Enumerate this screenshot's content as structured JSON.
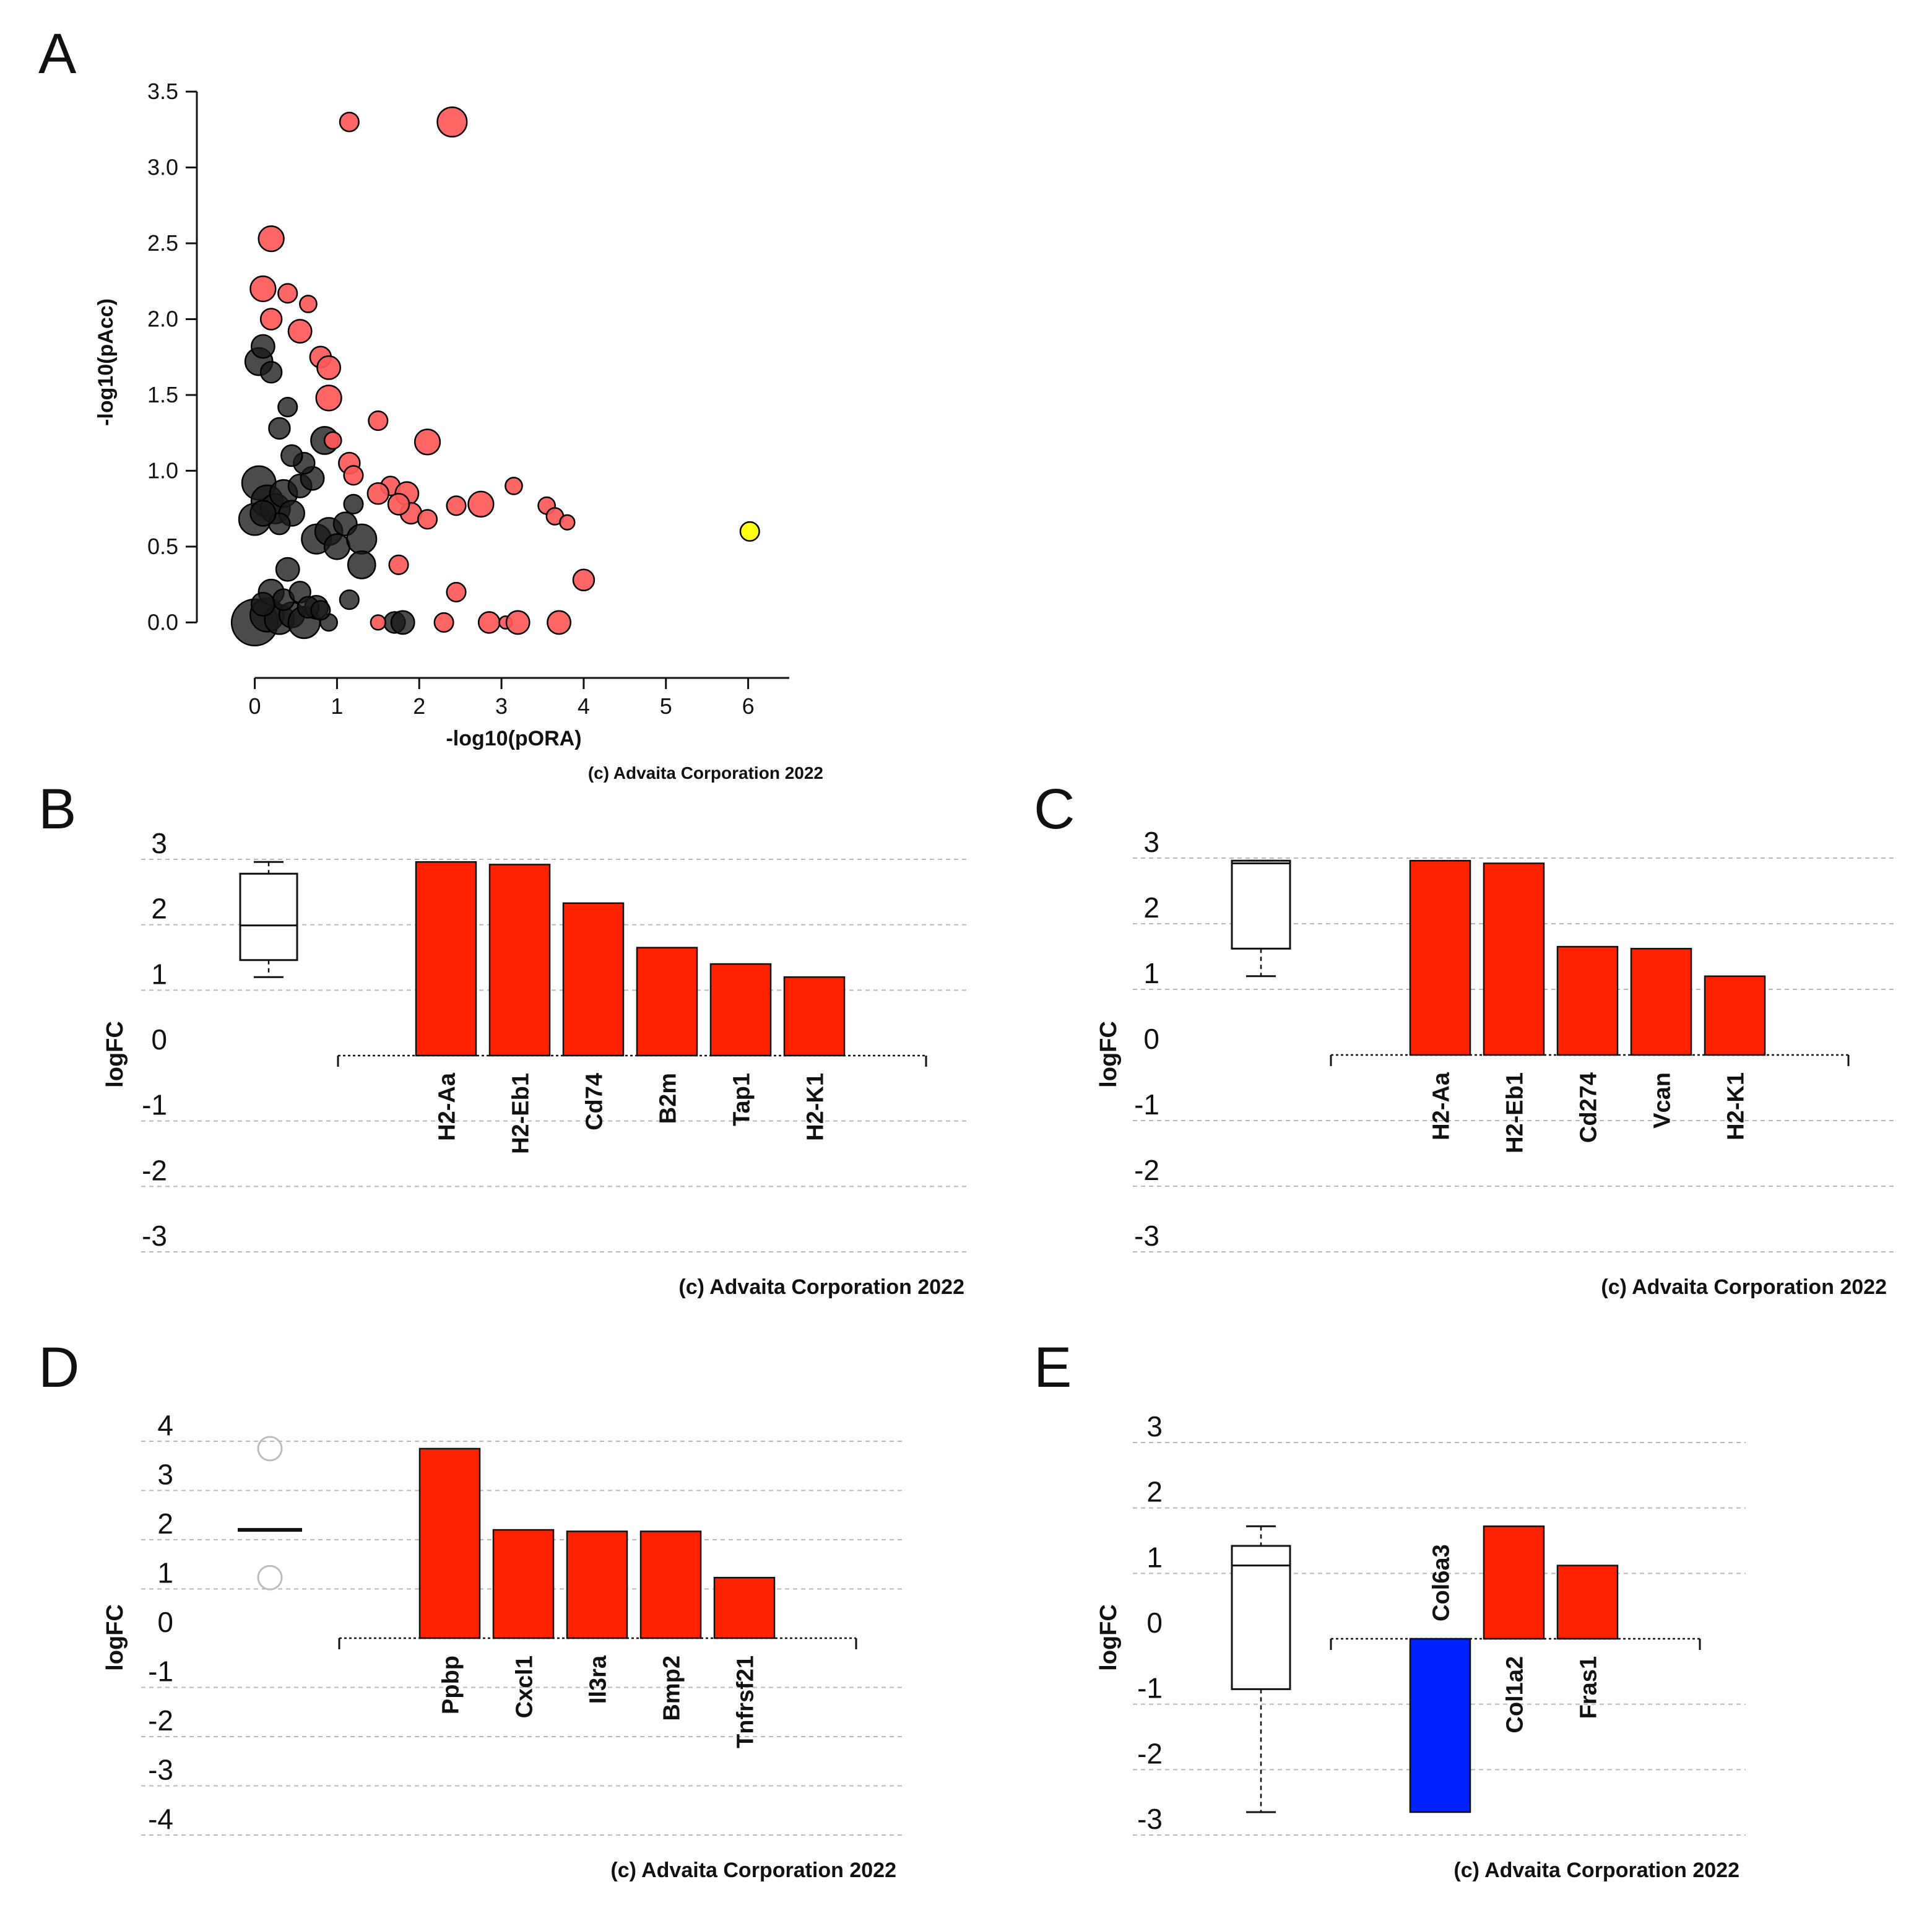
{
  "panels": {
    "A": {
      "label": "A",
      "chart_data": {
        "type": "scatter",
        "title": "",
        "xlabel": "-log10(pORA)",
        "ylabel": "-log10(pAcc)",
        "xlim": [
          -0.2,
          6.5
        ],
        "ylim": [
          -0.08,
          3.5
        ],
        "xticks": [
          "0",
          "1",
          "2",
          "3",
          "4",
          "5",
          "6"
        ],
        "yticks": [
          "0.0",
          "0.5",
          "1.0",
          "1.5",
          "2.0",
          "2.5",
          "3.0",
          "3.5"
        ],
        "grid": false,
        "colors": {
          "black": "#1a1a1a",
          "red": "#ff5a5a",
          "yellow": "#ffff00"
        },
        "points": [
          {
            "x": 0.0,
            "y": 0.0,
            "size": 2.2,
            "c": "black"
          },
          {
            "x": 0.15,
            "y": 0.05,
            "size": 1.6,
            "c": "black"
          },
          {
            "x": 0.3,
            "y": 0.02,
            "size": 1.4,
            "c": "black"
          },
          {
            "x": 0.45,
            "y": 0.05,
            "size": 1.2,
            "c": "black"
          },
          {
            "x": 0.6,
            "y": 0.0,
            "size": 1.5,
            "c": "black"
          },
          {
            "x": 0.75,
            "y": 0.1,
            "size": 1.1,
            "c": "black"
          },
          {
            "x": 0.9,
            "y": 0.0,
            "size": 0.8,
            "c": "black"
          },
          {
            "x": 0.2,
            "y": 0.2,
            "size": 1.2,
            "c": "black"
          },
          {
            "x": 0.35,
            "y": 0.15,
            "size": 1.0,
            "c": "black"
          },
          {
            "x": 0.55,
            "y": 0.2,
            "size": 1.0,
            "c": "black"
          },
          {
            "x": 0.1,
            "y": 0.12,
            "size": 1.1,
            "c": "black"
          },
          {
            "x": 0.4,
            "y": 0.35,
            "size": 1.1,
            "c": "black"
          },
          {
            "x": 0.65,
            "y": 0.1,
            "size": 1.0,
            "c": "black"
          },
          {
            "x": 0.8,
            "y": 0.08,
            "size": 0.9,
            "c": "black"
          },
          {
            "x": 1.15,
            "y": 0.15,
            "size": 0.9,
            "c": "black"
          },
          {
            "x": 1.7,
            "y": 0.0,
            "size": 1.0,
            "c": "black"
          },
          {
            "x": 1.8,
            "y": 0.0,
            "size": 1.1,
            "c": "black"
          },
          {
            "x": 0.0,
            "y": 0.68,
            "size": 1.5,
            "c": "black"
          },
          {
            "x": 0.05,
            "y": 0.92,
            "size": 1.6,
            "c": "black"
          },
          {
            "x": 0.15,
            "y": 0.8,
            "size": 1.5,
            "c": "black"
          },
          {
            "x": 0.25,
            "y": 0.75,
            "size": 1.4,
            "c": "black"
          },
          {
            "x": 0.35,
            "y": 0.85,
            "size": 1.3,
            "c": "black"
          },
          {
            "x": 0.45,
            "y": 0.72,
            "size": 1.2,
            "c": "black"
          },
          {
            "x": 0.55,
            "y": 0.9,
            "size": 1.1,
            "c": "black"
          },
          {
            "x": 0.3,
            "y": 0.65,
            "size": 1.0,
            "c": "black"
          },
          {
            "x": 0.1,
            "y": 0.72,
            "size": 1.2,
            "c": "black"
          },
          {
            "x": 0.75,
            "y": 0.55,
            "size": 1.4,
            "c": "black"
          },
          {
            "x": 0.9,
            "y": 0.6,
            "size": 1.3,
            "c": "black"
          },
          {
            "x": 1.0,
            "y": 0.5,
            "size": 1.2,
            "c": "black"
          },
          {
            "x": 1.1,
            "y": 0.65,
            "size": 1.1,
            "c": "black"
          },
          {
            "x": 1.3,
            "y": 0.55,
            "size": 1.4,
            "c": "black"
          },
          {
            "x": 1.3,
            "y": 0.38,
            "size": 1.3,
            "c": "black"
          },
          {
            "x": 1.2,
            "y": 0.78,
            "size": 0.9,
            "c": "black"
          },
          {
            "x": 0.85,
            "y": 1.2,
            "size": 1.3,
            "c": "black"
          },
          {
            "x": 0.7,
            "y": 0.95,
            "size": 1.1,
            "c": "black"
          },
          {
            "x": 0.3,
            "y": 1.28,
            "size": 1.0,
            "c": "black"
          },
          {
            "x": 0.4,
            "y": 1.42,
            "size": 0.9,
            "c": "black"
          },
          {
            "x": 0.05,
            "y": 1.72,
            "size": 1.3,
            "c": "black"
          },
          {
            "x": 0.1,
            "y": 1.82,
            "size": 1.1,
            "c": "black"
          },
          {
            "x": 0.2,
            "y": 1.65,
            "size": 1.0,
            "c": "black"
          },
          {
            "x": 0.6,
            "y": 1.05,
            "size": 1.0,
            "c": "black"
          },
          {
            "x": 0.45,
            "y": 1.1,
            "size": 1.0,
            "c": "black"
          },
          {
            "x": 1.15,
            "y": 3.3,
            "size": 0.9,
            "c": "red"
          },
          {
            "x": 2.4,
            "y": 3.3,
            "size": 1.4,
            "c": "red"
          },
          {
            "x": 0.2,
            "y": 2.53,
            "size": 1.2,
            "c": "red"
          },
          {
            "x": 0.1,
            "y": 2.2,
            "size": 1.2,
            "c": "red"
          },
          {
            "x": 0.4,
            "y": 2.17,
            "size": 0.9,
            "c": "red"
          },
          {
            "x": 0.65,
            "y": 2.1,
            "size": 0.8,
            "c": "red"
          },
          {
            "x": 0.2,
            "y": 2.0,
            "size": 1.0,
            "c": "red"
          },
          {
            "x": 0.55,
            "y": 1.92,
            "size": 1.1,
            "c": "red"
          },
          {
            "x": 0.8,
            "y": 1.75,
            "size": 1.0,
            "c": "red"
          },
          {
            "x": 0.9,
            "y": 1.68,
            "size": 1.1,
            "c": "red"
          },
          {
            "x": 0.9,
            "y": 1.48,
            "size": 1.2,
            "c": "red"
          },
          {
            "x": 1.5,
            "y": 1.33,
            "size": 0.9,
            "c": "red"
          },
          {
            "x": 2.1,
            "y": 1.19,
            "size": 1.2,
            "c": "red"
          },
          {
            "x": 0.95,
            "y": 1.2,
            "size": 0.8,
            "c": "red"
          },
          {
            "x": 1.15,
            "y": 1.05,
            "size": 1.0,
            "c": "red"
          },
          {
            "x": 1.2,
            "y": 0.97,
            "size": 0.9,
            "c": "red"
          },
          {
            "x": 1.65,
            "y": 0.9,
            "size": 0.9,
            "c": "red"
          },
          {
            "x": 1.85,
            "y": 0.85,
            "size": 1.1,
            "c": "red"
          },
          {
            "x": 1.9,
            "y": 0.72,
            "size": 1.0,
            "c": "red"
          },
          {
            "x": 1.75,
            "y": 0.78,
            "size": 1.0,
            "c": "red"
          },
          {
            "x": 1.5,
            "y": 0.85,
            "size": 1.0,
            "c": "red"
          },
          {
            "x": 2.1,
            "y": 0.68,
            "size": 0.9,
            "c": "red"
          },
          {
            "x": 2.45,
            "y": 0.77,
            "size": 0.9,
            "c": "red"
          },
          {
            "x": 2.75,
            "y": 0.78,
            "size": 1.2,
            "c": "red"
          },
          {
            "x": 3.15,
            "y": 0.9,
            "size": 0.8,
            "c": "red"
          },
          {
            "x": 3.55,
            "y": 0.77,
            "size": 0.8,
            "c": "red"
          },
          {
            "x": 3.65,
            "y": 0.7,
            "size": 0.8,
            "c": "red"
          },
          {
            "x": 3.8,
            "y": 0.66,
            "size": 0.7,
            "c": "red"
          },
          {
            "x": 4.0,
            "y": 0.28,
            "size": 1.0,
            "c": "red"
          },
          {
            "x": 1.75,
            "y": 0.38,
            "size": 0.9,
            "c": "red"
          },
          {
            "x": 2.45,
            "y": 0.2,
            "size": 0.9,
            "c": "red"
          },
          {
            "x": 1.5,
            "y": 0.0,
            "size": 0.7,
            "c": "red"
          },
          {
            "x": 2.3,
            "y": 0.0,
            "size": 0.9,
            "c": "red"
          },
          {
            "x": 2.85,
            "y": 0.0,
            "size": 1.0,
            "c": "red"
          },
          {
            "x": 3.05,
            "y": 0.0,
            "size": 0.6,
            "c": "red"
          },
          {
            "x": 3.2,
            "y": 0.0,
            "size": 1.1,
            "c": "red"
          },
          {
            "x": 3.7,
            "y": 0.0,
            "size": 1.1,
            "c": "red"
          },
          {
            "x": 6.02,
            "y": 0.6,
            "size": 0.9,
            "c": "yellow"
          }
        ]
      },
      "footer": "(c) Advaita Corporation 2022"
    },
    "B": {
      "label": "B",
      "chart_data": {
        "type": "bar",
        "title": "",
        "xlabel": "",
        "ylabel": "logFC",
        "ylim": [
          -3,
          3
        ],
        "yticks": [
          "3",
          "2",
          "1",
          "0",
          "-1",
          "-2",
          "-3"
        ],
        "grid": true,
        "categories": [
          "H2-Aa",
          "H2-Eb1",
          "Cd74",
          "B2m",
          "Tap1",
          "H2-K1"
        ],
        "values": [
          2.96,
          2.92,
          2.33,
          1.65,
          1.4,
          1.2
        ],
        "colors": [
          "#ff2200",
          "#ff2200",
          "#ff2200",
          "#ff2200",
          "#ff2200",
          "#ff2200"
        ],
        "boxplot": {
          "whisker_low": 1.2,
          "q1": 1.46,
          "median": 1.99,
          "q3": 2.78,
          "whisker_high": 2.96,
          "outliers": []
        }
      },
      "footer": "(c) Advaita Corporation 2022"
    },
    "C": {
      "label": "C",
      "chart_data": {
        "type": "bar",
        "title": "",
        "xlabel": "",
        "ylabel": "logFC",
        "ylim": [
          -3,
          3
        ],
        "yticks": [
          "3",
          "2",
          "1",
          "0",
          "-1",
          "-2",
          "-3"
        ],
        "grid": true,
        "categories": [
          "H2-Aa",
          "H2-Eb1",
          "Cd274",
          "Vcan",
          "H2-K1"
        ],
        "values": [
          2.96,
          2.92,
          1.65,
          1.62,
          1.2
        ],
        "colors": [
          "#ff2200",
          "#ff2200",
          "#ff2200",
          "#ff2200",
          "#ff2200"
        ],
        "boxplot": {
          "whisker_low": 1.2,
          "q1": 1.62,
          "median": 2.92,
          "q3": 2.96,
          "whisker_high": 2.96,
          "outliers": []
        }
      },
      "footer": "(c) Advaita Corporation 2022"
    },
    "D": {
      "label": "D",
      "chart_data": {
        "type": "bar",
        "title": "",
        "xlabel": "",
        "ylabel": "logFC",
        "ylim": [
          -4,
          4
        ],
        "yticks": [
          "4",
          "3",
          "2",
          "1",
          "0",
          "-1",
          "-2",
          "-3",
          "-4"
        ],
        "grid": true,
        "categories": [
          "Ppbp",
          "Cxcl1",
          "Il3ra",
          "Bmp2",
          "Tnfrsf21"
        ],
        "values": [
          3.85,
          2.2,
          2.17,
          2.17,
          1.23
        ],
        "colors": [
          "#ff2200",
          "#ff2200",
          "#ff2200",
          "#ff2200",
          "#ff2200"
        ],
        "boxplot": {
          "whisker_low": 2.17,
          "q1": 2.17,
          "median": 2.2,
          "q3": 2.2,
          "whisker_high": 2.2,
          "outliers": [
            3.85,
            1.23
          ]
        }
      },
      "footer": "(c) Advaita Corporation 2022"
    },
    "E": {
      "label": "E",
      "chart_data": {
        "type": "bar",
        "title": "",
        "xlabel": "",
        "ylabel": "logFC",
        "ylim": [
          -3,
          3
        ],
        "yticks": [
          "3",
          "2",
          "1",
          "0",
          "-1",
          "-2",
          "-3"
        ],
        "grid": true,
        "categories": [
          "Col6a3",
          "Col1a2",
          "Fras1"
        ],
        "values": [
          -2.65,
          1.72,
          1.12
        ],
        "colors": [
          "#0022ff",
          "#ff2200",
          "#ff2200"
        ],
        "boxplot": {
          "whisker_low": -2.65,
          "q1": -0.77,
          "median": 1.12,
          "q3": 1.42,
          "whisker_high": 1.72,
          "outliers": []
        }
      },
      "footer": "(c) Advaita Corporation 2022"
    }
  }
}
